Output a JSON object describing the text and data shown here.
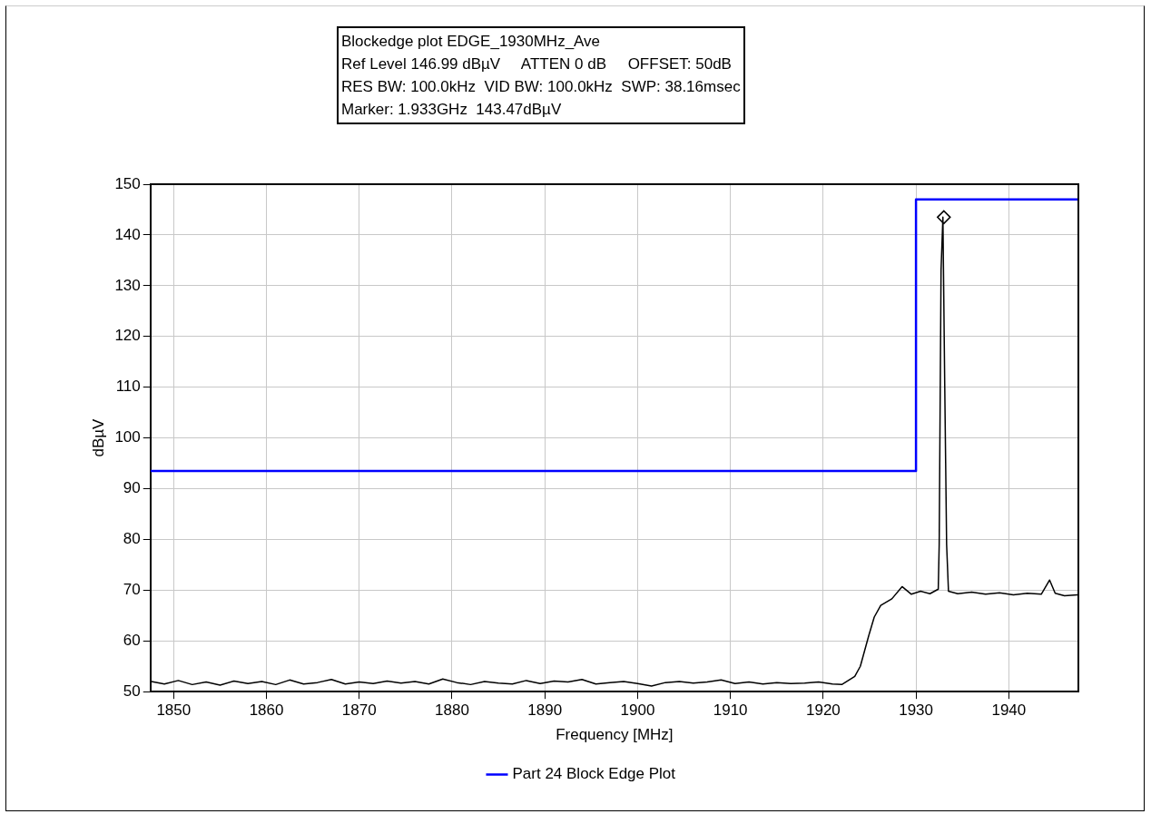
{
  "chart_data": {
    "type": "line",
    "title": "Blockedge plot EDGE_1930MHz_Ave",
    "annotations": [
      "Ref Level 146.99 dBµV     ATTEN 0 dB     OFFSET: 50dB",
      "RES BW: 100.0kHz  VID BW: 100.0kHz  SWP: 38.16msec",
      "Marker: 1.933GHz  143.47dBµV"
    ],
    "xlabel": "Frequency [MHz]",
    "ylabel": "dBµV",
    "xlim": [
      1847.5,
      1947.5
    ],
    "xticks": [
      1850,
      1860,
      1870,
      1880,
      1890,
      1900,
      1910,
      1920,
      1930,
      1940
    ],
    "ylim": [
      50,
      150
    ],
    "yticks": [
      50,
      60,
      70,
      80,
      90,
      100,
      110,
      120,
      130,
      140,
      150
    ],
    "grid": true,
    "legend": "bottom",
    "marker": "none",
    "line_style": "solid",
    "series": [
      {
        "color": "#000000",
        "x": [
          1847.6,
          1849,
          1850.5,
          1852,
          1853.5,
          1855,
          1856.5,
          1858,
          1859.5,
          1861,
          1862.5,
          1864,
          1865.5,
          1867,
          1868.5,
          1870,
          1871.5,
          1873,
          1874.5,
          1876,
          1877.5,
          1879,
          1880.5,
          1882,
          1883.5,
          1885,
          1886.5,
          1888,
          1889.5,
          1891,
          1892.5,
          1894,
          1895.5,
          1897,
          1898.5,
          1900,
          1901.5,
          1903,
          1904.5,
          1906,
          1907.5,
          1909,
          1910.5,
          1912,
          1913.5,
          1915,
          1916.5,
          1918,
          1919.5,
          1921,
          1922,
          1923.4,
          1924,
          1924.9,
          1925.5,
          1926.2,
          1927.4,
          1928.5,
          1929.5,
          1930.5,
          1931.5,
          1932.4,
          1932.5,
          1932.7,
          1932.9,
          1933.1,
          1933.3,
          1933.5,
          1934.5,
          1936,
          1937.5,
          1939,
          1940.5,
          1942,
          1943.5,
          1944.4,
          1945,
          1946,
          1947.4
        ],
        "values": [
          52,
          51.5,
          52.2,
          51.4,
          51.9,
          51.3,
          52.1,
          51.6,
          52,
          51.4,
          52.3,
          51.5,
          51.8,
          52.4,
          51.5,
          51.9,
          51.6,
          52.1,
          51.7,
          52,
          51.5,
          52.5,
          51.8,
          51.4,
          52,
          51.7,
          51.5,
          52.2,
          51.6,
          52.1,
          51.9,
          52.4,
          51.5,
          51.8,
          52,
          51.6,
          51.1,
          51.8,
          52,
          51.7,
          51.9,
          52.3,
          51.6,
          51.9,
          51.5,
          51.8,
          51.6,
          51.7,
          51.9,
          51.5,
          51.4,
          53,
          55,
          61,
          64.7,
          67,
          68.3,
          70.7,
          69.2,
          69.8,
          69.3,
          70.2,
          79,
          133,
          143.5,
          110,
          79,
          69.8,
          69.3,
          69.6,
          69.2,
          69.5,
          69.1,
          69.4,
          69.2,
          72,
          69.4,
          68.9,
          69.1
        ]
      },
      {
        "name": "Part 24 Block Edge Plot",
        "type": "step",
        "color": "#0000ff",
        "x": [
          1847.5,
          1930,
          1947.5
        ],
        "values": [
          93.5,
          147,
          147
        ]
      },
      {
        "type": "scatter",
        "marker": "diamond",
        "color": "#000000",
        "x": [
          1933
        ],
        "values": [
          143.5
        ]
      }
    ]
  }
}
